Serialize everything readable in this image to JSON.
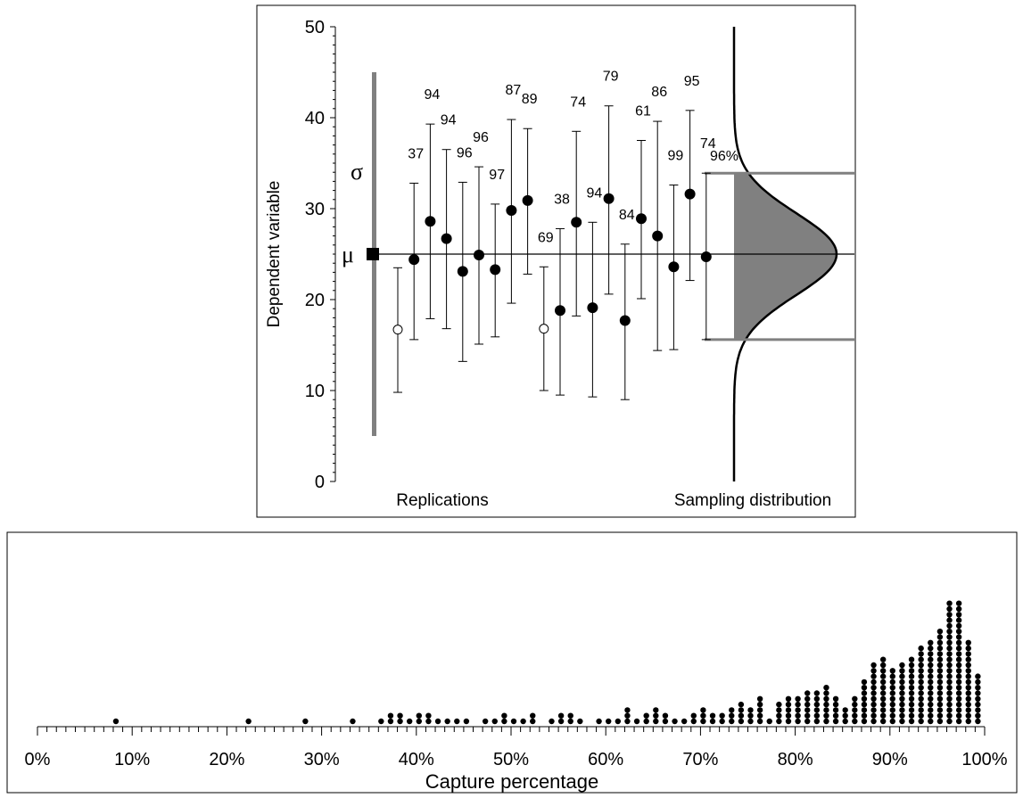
{
  "chart_data": [
    {
      "type": "scatter",
      "ylabel": "Dependent variable",
      "xlabel_left": "Replications",
      "xlabel_right": "Sampling distribution",
      "ylim": [
        0,
        50
      ],
      "yticks": [
        "0",
        "10",
        "20",
        "30",
        "40",
        "50"
      ],
      "mu": 25,
      "mu_label": "μ",
      "sigma_label": "σ",
      "sigma_bar": [
        5,
        45
      ],
      "filled_fill": "#000000",
      "sampling_distribution": {
        "mean": 25,
        "sd": 4.5,
        "shaded_range": [
          15.6,
          33.9
        ]
      },
      "replications": [
        {
          "mean": 16.7,
          "lower": 9.8,
          "upper": 23.5,
          "label": "",
          "captures_mu": false
        },
        {
          "mean": 24.4,
          "lower": 15.6,
          "upper": 32.8,
          "label": "37",
          "captures_mu": true
        },
        {
          "mean": 28.6,
          "lower": 17.9,
          "upper": 39.3,
          "label": "94",
          "captures_mu": true
        },
        {
          "mean": 26.7,
          "lower": 16.8,
          "upper": 36.5,
          "label": "94",
          "captures_mu": true
        },
        {
          "mean": 23.1,
          "lower": 13.2,
          "upper": 32.9,
          "label": "96",
          "captures_mu": true
        },
        {
          "mean": 24.9,
          "lower": 15.1,
          "upper": 34.6,
          "label": "96",
          "captures_mu": true
        },
        {
          "mean": 23.3,
          "lower": 15.9,
          "upper": 30.5,
          "label": "97",
          "captures_mu": true
        },
        {
          "mean": 29.8,
          "lower": 19.6,
          "upper": 39.8,
          "label": "87",
          "captures_mu": true
        },
        {
          "mean": 30.9,
          "lower": 22.8,
          "upper": 38.8,
          "label": "89",
          "captures_mu": true
        },
        {
          "mean": 16.8,
          "lower": 10.0,
          "upper": 23.6,
          "label": "69",
          "captures_mu": false
        },
        {
          "mean": 18.8,
          "lower": 9.5,
          "upper": 27.8,
          "label": "38",
          "captures_mu": true
        },
        {
          "mean": 28.5,
          "lower": 18.2,
          "upper": 38.5,
          "label": "74",
          "captures_mu": true
        },
        {
          "mean": 19.1,
          "lower": 9.3,
          "upper": 28.5,
          "label": "94",
          "captures_mu": true
        },
        {
          "mean": 31.1,
          "lower": 20.6,
          "upper": 41.3,
          "label": "79",
          "captures_mu": true
        },
        {
          "mean": 17.7,
          "lower": 9.0,
          "upper": 26.1,
          "label": "84",
          "captures_mu": true
        },
        {
          "mean": 28.9,
          "lower": 20.1,
          "upper": 37.5,
          "label": "61",
          "captures_mu": true
        },
        {
          "mean": 27.0,
          "lower": 14.4,
          "upper": 39.6,
          "label": "86",
          "captures_mu": true
        },
        {
          "mean": 23.6,
          "lower": 14.5,
          "upper": 32.6,
          "label": "99",
          "captures_mu": true
        },
        {
          "mean": 31.6,
          "lower": 22.1,
          "upper": 40.8,
          "label": "95",
          "captures_mu": true
        },
        {
          "mean": 24.7,
          "lower": 15.6,
          "upper": 33.9,
          "label": "74",
          "captures_mu": true
        },
        {
          "mean": null,
          "lower": null,
          "upper": null,
          "label": "96%",
          "captures_mu": null
        }
      ]
    },
    {
      "type": "scatter",
      "subtype": "dot plot",
      "xlabel": "Capture percentage",
      "xlim": [
        0,
        100
      ],
      "xticks": [
        "0%",
        "10%",
        "20%",
        "30%",
        "40%",
        "50%",
        "60%",
        "70%",
        "80%",
        "90%",
        "100%"
      ],
      "dot_stacks": [
        [
          8,
          1
        ],
        [
          22,
          1
        ],
        [
          28,
          1
        ],
        [
          33,
          1
        ],
        [
          36,
          1
        ],
        [
          37,
          2
        ],
        [
          38,
          2
        ],
        [
          39,
          1
        ],
        [
          40,
          2
        ],
        [
          41,
          2
        ],
        [
          42,
          1
        ],
        [
          43,
          1
        ],
        [
          44,
          1
        ],
        [
          45,
          1
        ],
        [
          47,
          1
        ],
        [
          48,
          1
        ],
        [
          49,
          2
        ],
        [
          50,
          1
        ],
        [
          51,
          1
        ],
        [
          52,
          2
        ],
        [
          54,
          1
        ],
        [
          55,
          2
        ],
        [
          56,
          2
        ],
        [
          57,
          1
        ],
        [
          59,
          1
        ],
        [
          60,
          1
        ],
        [
          61,
          1
        ],
        [
          62,
          3
        ],
        [
          63,
          1
        ],
        [
          64,
          2
        ],
        [
          65,
          3
        ],
        [
          66,
          2
        ],
        [
          67,
          1
        ],
        [
          68,
          1
        ],
        [
          69,
          2
        ],
        [
          70,
          3
        ],
        [
          71,
          2
        ],
        [
          72,
          2
        ],
        [
          73,
          3
        ],
        [
          74,
          4
        ],
        [
          75,
          3
        ],
        [
          76,
          5
        ],
        [
          77,
          1
        ],
        [
          78,
          4
        ],
        [
          79,
          5
        ],
        [
          80,
          5
        ],
        [
          81,
          6
        ],
        [
          82,
          6
        ],
        [
          83,
          7
        ],
        [
          84,
          5
        ],
        [
          85,
          3
        ],
        [
          86,
          5
        ],
        [
          87,
          8
        ],
        [
          88,
          11
        ],
        [
          89,
          12
        ],
        [
          90,
          10
        ],
        [
          91,
          11
        ],
        [
          92,
          12
        ],
        [
          93,
          14
        ],
        [
          94,
          15
        ],
        [
          95,
          17
        ],
        [
          96,
          22
        ],
        [
          97,
          22
        ],
        [
          98,
          15
        ],
        [
          99,
          9
        ]
      ]
    }
  ]
}
